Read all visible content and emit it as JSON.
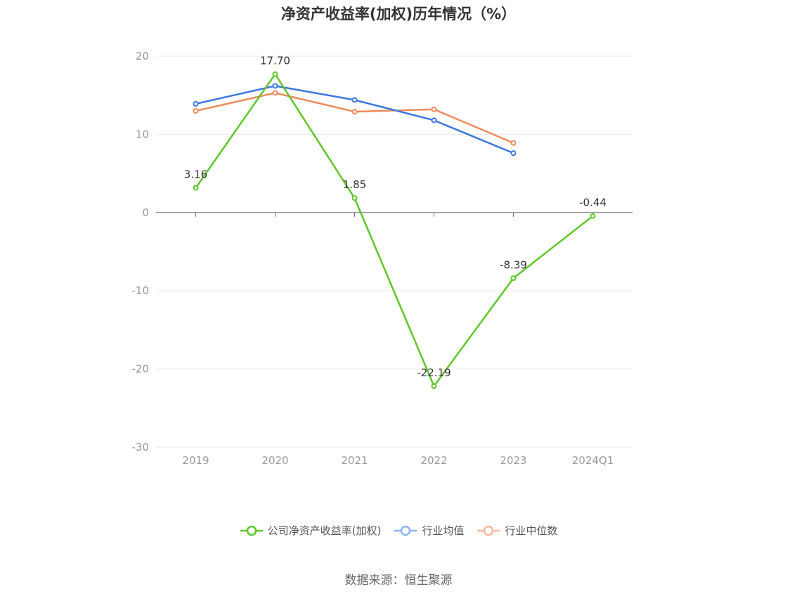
{
  "chart_data": {
    "type": "line",
    "title": "净资产收益率(加权)历年情况（%）",
    "categories": [
      "2019",
      "2020",
      "2021",
      "2022",
      "2023",
      "2024Q1"
    ],
    "ylim": [
      -30,
      20
    ],
    "yticks": [
      "20",
      "10",
      "0",
      "-10",
      "-20",
      "-30"
    ],
    "grid": true,
    "legend_position": "bottom",
    "series": [
      {
        "name": "公司净资产收益率(加权)",
        "color": "#5ec626",
        "values": [
          3.16,
          17.7,
          1.85,
          -22.19,
          -8.39,
          -0.44
        ],
        "labels": [
          "3.16",
          "17.70",
          "1.85",
          "-22.19",
          "-8.39",
          "-0.44"
        ]
      },
      {
        "name": "行业均值",
        "color": "#3a77e0",
        "values": [
          13.9,
          16.2,
          14.4,
          11.8,
          7.6,
          null
        ]
      },
      {
        "name": "行业中位数",
        "color": "#f08a5a",
        "values": [
          13.0,
          15.3,
          12.9,
          13.2,
          8.9,
          null
        ]
      }
    ]
  },
  "source": "数据来源：恒生聚源"
}
